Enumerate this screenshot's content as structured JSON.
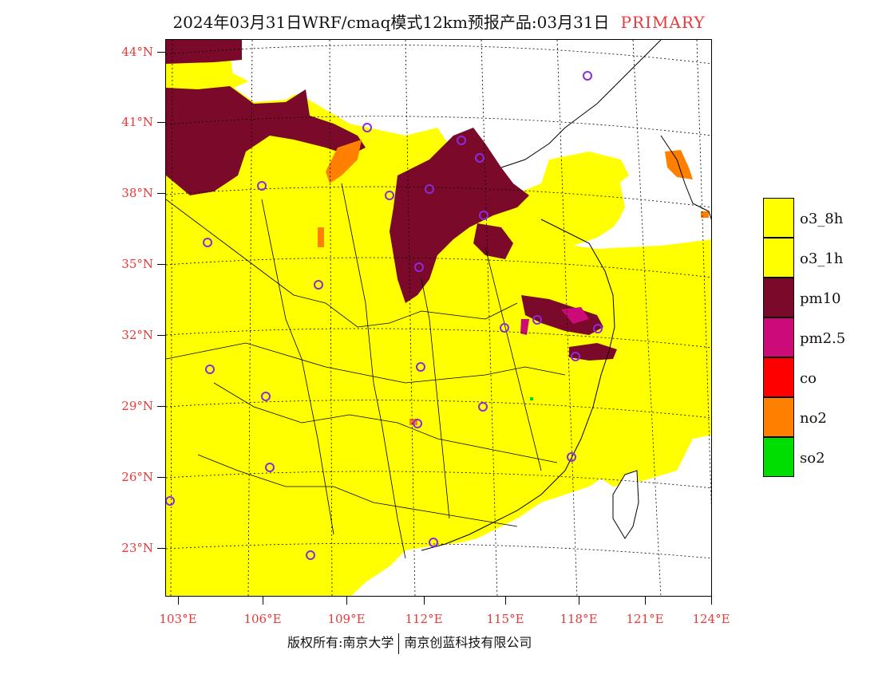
{
  "title": {
    "main": "2024年03月31日WRF/cmaq模式12km预报产品:03月31日",
    "tag": "PRIMARY"
  },
  "colors": {
    "o3_8h": "#ffff00",
    "o3_1h": "#ffff00",
    "pm10": "#7b0a2a",
    "pm25": "#cc0a78",
    "co": "#ff0000",
    "no2": "#ff7f00",
    "so2": "#00dd00",
    "city_marker": "#8a2be2",
    "axis_label": "#e83a3a"
  },
  "axes": {
    "lat_labels": [
      "44°N",
      "41°N",
      "38°N",
      "35°N",
      "32°N",
      "29°N",
      "26°N",
      "23°N"
    ],
    "lon_labels": [
      "103°E",
      "106°E",
      "109°E",
      "112°E",
      "115°E",
      "118°E",
      "121°E",
      "124°E"
    ]
  },
  "legend": [
    {
      "label": "o3_8h",
      "color": "#ffff00"
    },
    {
      "label": "o3_1h",
      "color": "#ffff00"
    },
    {
      "label": "pm10",
      "color": "#7b0a2a"
    },
    {
      "label": "pm2.5",
      "color": "#cc0a78"
    },
    {
      "label": "co",
      "color": "#ff0000"
    },
    {
      "label": "no2",
      "color": "#ff7f00"
    },
    {
      "label": "so2",
      "color": "#00dd00"
    }
  ],
  "footer": {
    "left": "版权所有:南京大学",
    "right": "南京创蓝科技有限公司"
  }
}
